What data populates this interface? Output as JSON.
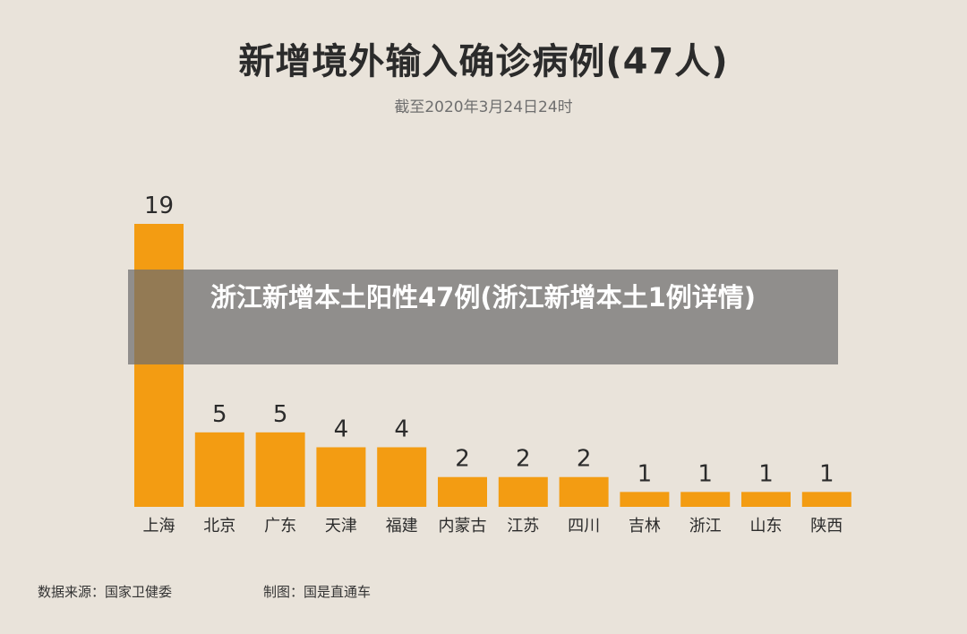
{
  "chart_data": {
    "type": "bar",
    "title": "新增境外输入确诊病例(47人)",
    "subtitle": "截至2020年3月24日24时",
    "categories": [
      "上海",
      "北京",
      "广东",
      "天津",
      "福建",
      "内蒙古",
      "江苏",
      "四川",
      "吉林",
      "浙江",
      "山东",
      "陕西"
    ],
    "values": [
      19,
      5,
      5,
      4,
      4,
      2,
      2,
      2,
      1,
      1,
      1,
      1
    ],
    "ylim": [
      0,
      19
    ],
    "grid": false,
    "bar_color": "#f39c12"
  },
  "footer": {
    "source": "数据来源：国家卫健委",
    "maker": "制图：国是直通车"
  },
  "overlay": {
    "headline": "浙江新增本土阳性47例(浙江新增本土1例详情)"
  }
}
